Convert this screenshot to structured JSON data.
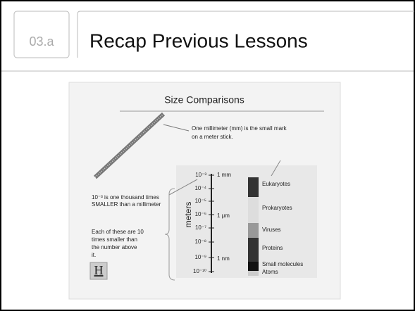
{
  "header": {
    "section": "03.a",
    "title": "Recap Previous Lessons"
  },
  "figure": {
    "title": "Size Comparisons",
    "stick_note": [
      "One millimeter (mm) is the small mark",
      "on a meter stick."
    ],
    "scale_note": [
      "10⁻³ is one thousand times",
      "SMALLER than a millimeter"
    ],
    "each_note": [
      "Each of these are 10",
      "times smaller than",
      "the number above",
      "it."
    ],
    "axis_label": "meters",
    "scale_ticks": [
      "10⁻³",
      "10⁻⁴",
      "10⁻⁵",
      "10⁻⁶",
      "10⁻⁷",
      "10⁻⁸",
      "10⁻⁹",
      "10⁻¹⁰"
    ],
    "unit_marks": [
      "1 mm",
      "1 μm",
      "1 nm"
    ],
    "categories": [
      "Eukaryotes",
      "Prokaryotes",
      "Viruses",
      "Proteins",
      "Small molecules",
      "Atoms"
    ],
    "icon": "H"
  }
}
